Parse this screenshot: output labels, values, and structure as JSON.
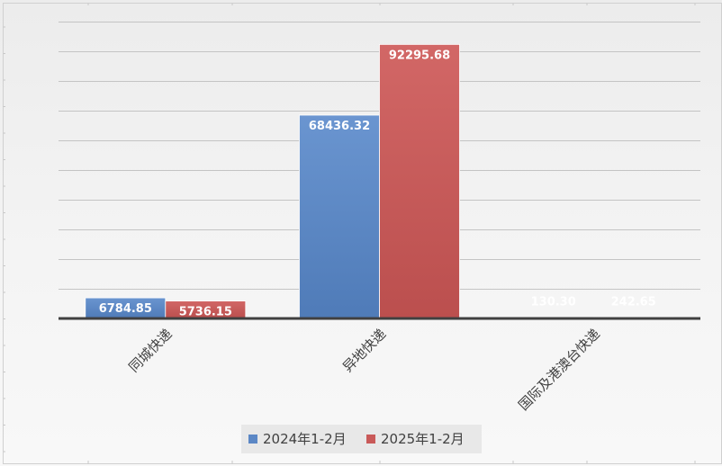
{
  "chart_data": {
    "type": "bar",
    "categories": [
      "同城快递",
      "异地快递",
      "国际及港澳台快递"
    ],
    "series": [
      {
        "name": "2024年1-2月",
        "color": "#5b87c5",
        "values": [
          6784.85,
          68436.32,
          130.3
        ],
        "labels": [
          "6784.85",
          "68436.32",
          "130.30"
        ]
      },
      {
        "name": "2025年1-2月",
        "color": "#c95a59",
        "values": [
          5736.15,
          92295.68,
          242.65
        ],
        "labels": [
          "5736.15",
          "92295.68",
          "242.65"
        ]
      }
    ],
    "ylim": [
      0,
      100000
    ],
    "grid": true,
    "legend_position": "bottom"
  }
}
